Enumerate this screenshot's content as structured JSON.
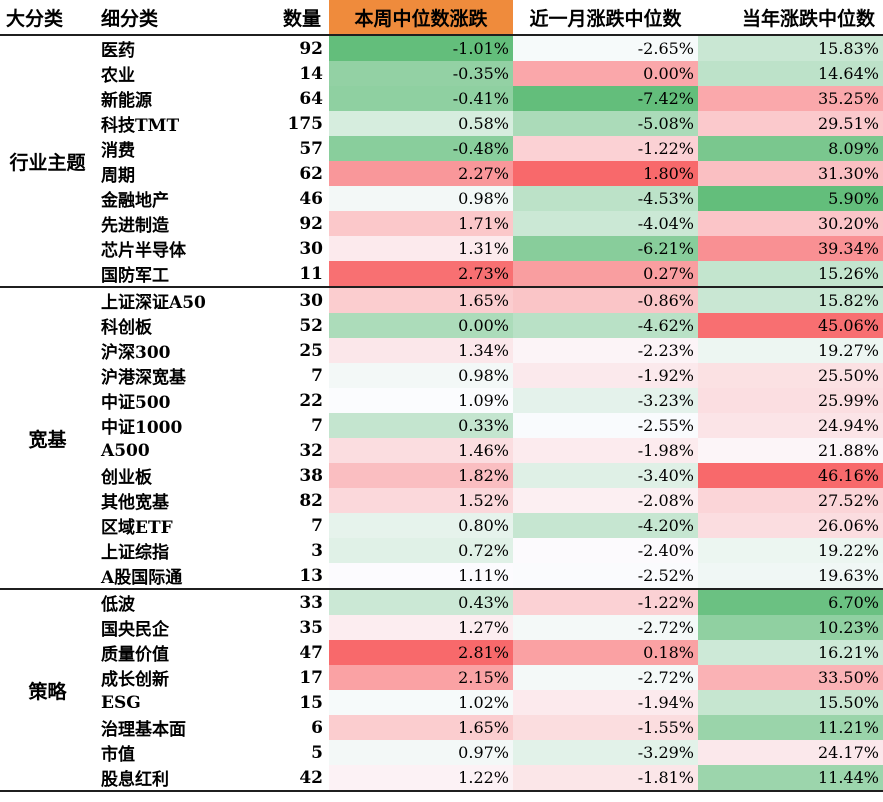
{
  "header": {
    "category": "大分类",
    "subcategory": "细分类",
    "count": "数量",
    "week_median": "本周中位数涨跌",
    "month_median": "近一月涨跌中位数",
    "ytd_median": "当年涨跌中位数"
  },
  "colors": {
    "header_highlight": "#ef8b3c",
    "positive_scale": "red",
    "negative_scale": "green"
  },
  "groups": [
    {
      "name": "行业主题",
      "rows": [
        {
          "name": "医药",
          "count": "92",
          "week": "-1.01%",
          "month": "-2.65%",
          "ytd": "15.83%"
        },
        {
          "name": "农业",
          "count": "14",
          "week": "-0.35%",
          "month": "0.00%",
          "ytd": "14.64%"
        },
        {
          "name": "新能源",
          "count": "64",
          "week": "-0.41%",
          "month": "-7.42%",
          "ytd": "35.25%"
        },
        {
          "name": "科技TMT",
          "count": "175",
          "week": "0.58%",
          "month": "-5.08%",
          "ytd": "29.51%"
        },
        {
          "name": "消费",
          "count": "57",
          "week": "-0.48%",
          "month": "-1.22%",
          "ytd": "8.09%"
        },
        {
          "name": "周期",
          "count": "62",
          "week": "2.27%",
          "month": "1.80%",
          "ytd": "31.30%"
        },
        {
          "name": "金融地产",
          "count": "46",
          "week": "0.98%",
          "month": "-4.53%",
          "ytd": "5.90%"
        },
        {
          "name": "先进制造",
          "count": "92",
          "week": "1.71%",
          "month": "-4.04%",
          "ytd": "30.20%"
        },
        {
          "name": "芯片半导体",
          "count": "30",
          "week": "1.31%",
          "month": "-6.21%",
          "ytd": "39.34%"
        },
        {
          "name": "国防军工",
          "count": "11",
          "week": "2.73%",
          "month": "0.27%",
          "ytd": "15.26%"
        }
      ]
    },
    {
      "name": "宽基",
      "rows": [
        {
          "name": "上证深证A50",
          "count": "30",
          "week": "1.65%",
          "month": "-0.86%",
          "ytd": "15.82%"
        },
        {
          "name": "科创板",
          "count": "52",
          "week": "0.00%",
          "month": "-4.62%",
          "ytd": "45.06%"
        },
        {
          "name": "沪深300",
          "count": "25",
          "week": "1.34%",
          "month": "-2.23%",
          "ytd": "19.27%"
        },
        {
          "name": "沪港深宽基",
          "count": "7",
          "week": "0.98%",
          "month": "-1.92%",
          "ytd": "25.50%"
        },
        {
          "name": "中证500",
          "count": "22",
          "week": "1.09%",
          "month": "-3.23%",
          "ytd": "25.99%"
        },
        {
          "name": "中证1000",
          "count": "7",
          "week": "0.33%",
          "month": "-2.55%",
          "ytd": "24.94%"
        },
        {
          "name": "A500",
          "count": "32",
          "week": "1.46%",
          "month": "-1.98%",
          "ytd": "21.88%"
        },
        {
          "name": "创业板",
          "count": "38",
          "week": "1.82%",
          "month": "-3.40%",
          "ytd": "46.16%"
        },
        {
          "name": "其他宽基",
          "count": "82",
          "week": "1.52%",
          "month": "-2.08%",
          "ytd": "27.52%"
        },
        {
          "name": "区域ETF",
          "count": "7",
          "week": "0.80%",
          "month": "-4.20%",
          "ytd": "26.06%"
        },
        {
          "name": "上证综指",
          "count": "3",
          "week": "0.72%",
          "month": "-2.40%",
          "ytd": "19.22%"
        },
        {
          "name": "A股国际通",
          "count": "13",
          "week": "1.11%",
          "month": "-2.52%",
          "ytd": "19.63%"
        }
      ]
    },
    {
      "name": "策略",
      "rows": [
        {
          "name": "低波",
          "count": "33",
          "week": "0.43%",
          "month": "-1.22%",
          "ytd": "6.70%"
        },
        {
          "name": "国央民企",
          "count": "35",
          "week": "1.27%",
          "month": "-2.72%",
          "ytd": "10.23%"
        },
        {
          "name": "质量价值",
          "count": "47",
          "week": "2.81%",
          "month": "0.18%",
          "ytd": "16.21%"
        },
        {
          "name": "成长创新",
          "count": "17",
          "week": "2.15%",
          "month": "-2.72%",
          "ytd": "33.50%"
        },
        {
          "name": "ESG",
          "count": "15",
          "week": "1.02%",
          "month": "-1.94%",
          "ytd": "15.50%"
        },
        {
          "name": "治理基本面",
          "count": "6",
          "week": "1.65%",
          "month": "-1.55%",
          "ytd": "11.21%"
        },
        {
          "name": "市值",
          "count": "5",
          "week": "0.97%",
          "month": "-3.29%",
          "ytd": "24.17%"
        },
        {
          "name": "股息红利",
          "count": "42",
          "week": "1.22%",
          "month": "-1.81%",
          "ytd": "11.44%"
        }
      ]
    }
  ]
}
